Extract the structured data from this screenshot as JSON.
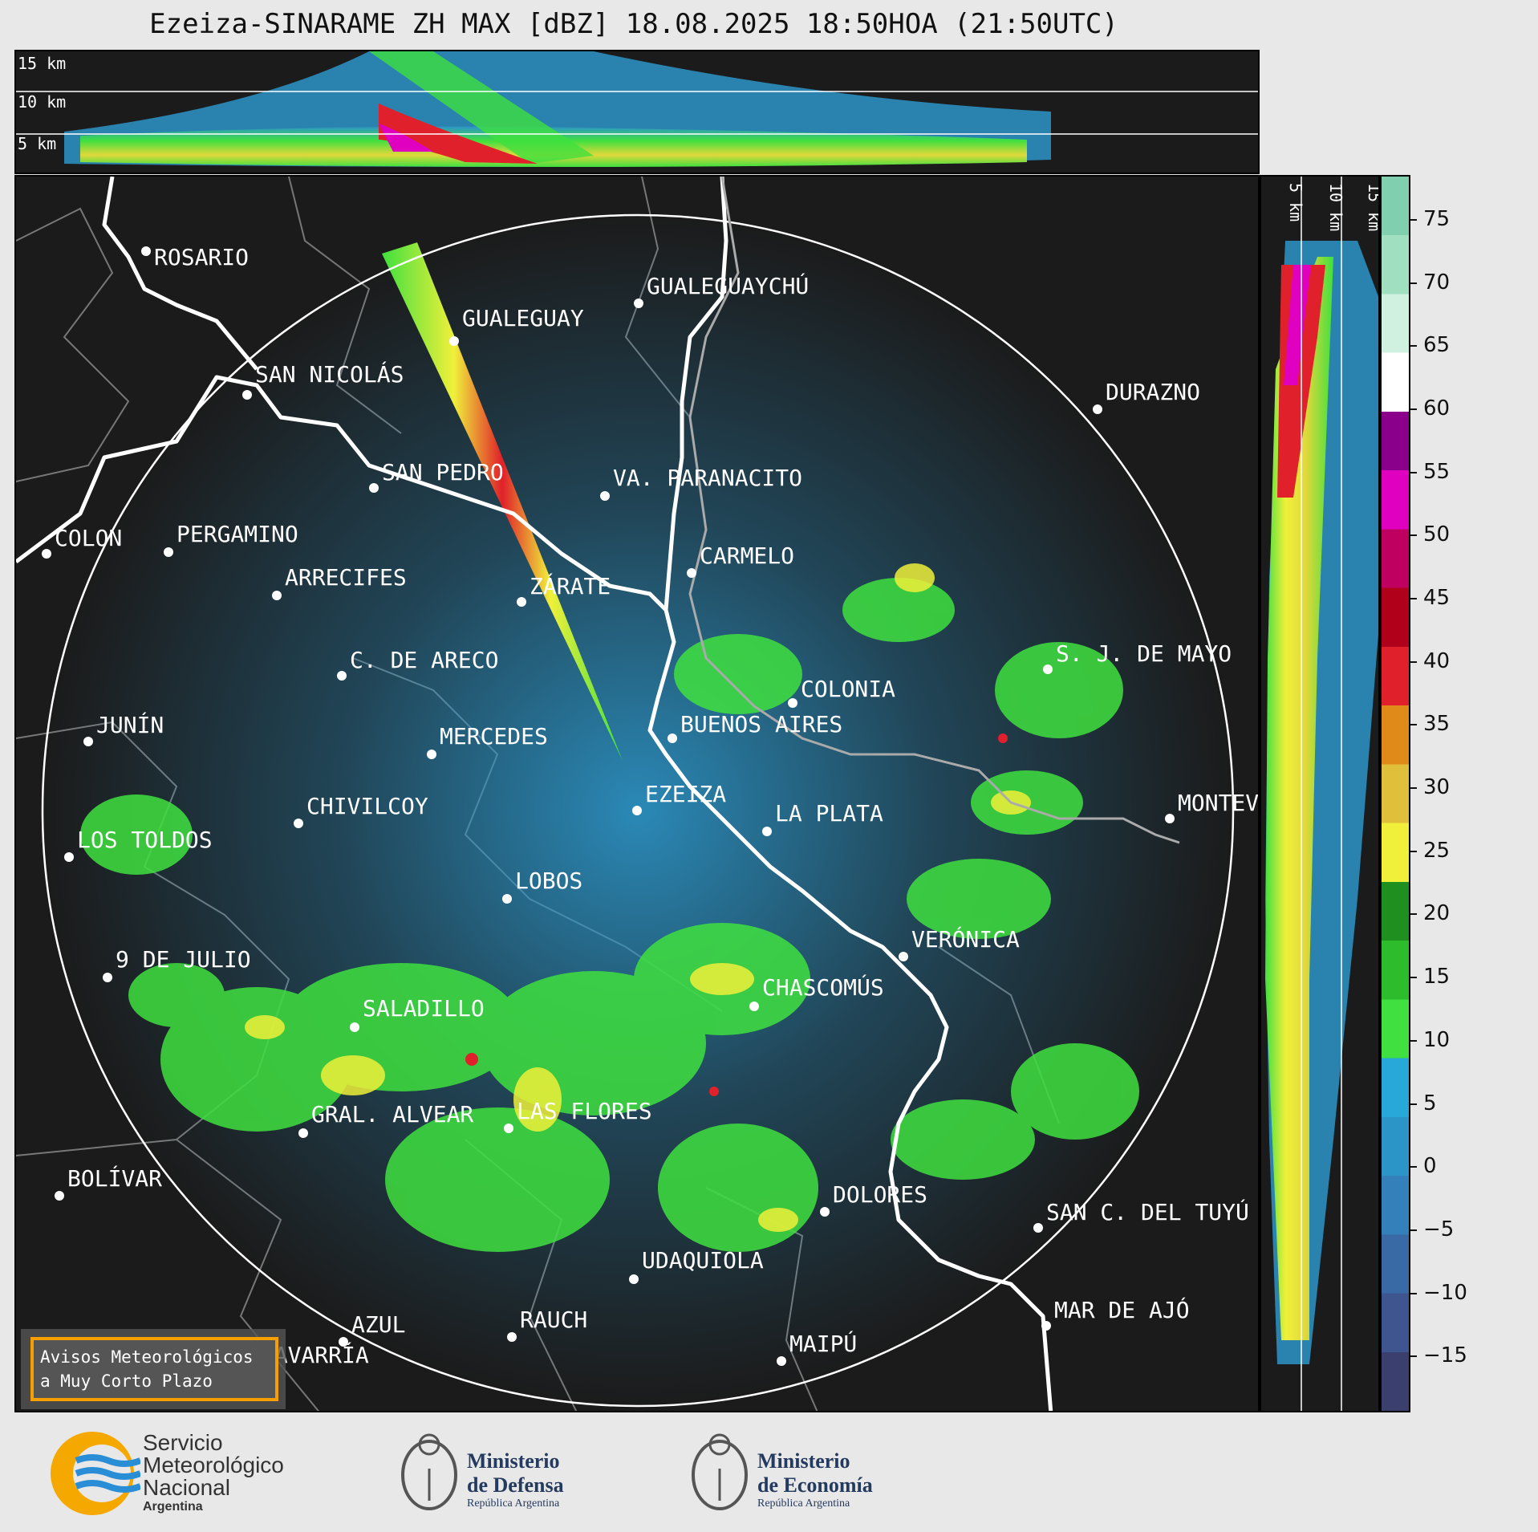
{
  "title": "Ezeiza-SINARAME ZH MAX [dBZ] 18.08.2025 18:50HOA (21:50UTC)",
  "top_panel": {
    "altitude_labels": [
      "15 km",
      "10 km",
      "5 km"
    ]
  },
  "side_panel": {
    "altitude_labels": [
      "5 km",
      "10 km",
      "15 km"
    ]
  },
  "colorbar": {
    "unit": "dBZ",
    "ticks": [
      "75",
      "70",
      "65",
      "60",
      "55",
      "50",
      "45",
      "40",
      "35",
      "30",
      "25",
      "20",
      "15",
      "10",
      "5",
      "0",
      "−5",
      "−10",
      "−15"
    ],
    "colors": [
      "#3b3f6e",
      "#3f5590",
      "#3a6aa6",
      "#3480bb",
      "#2c95c8",
      "#27a8d8",
      "#3fe03f",
      "#2cbc2c",
      "#1f8f1f",
      "#f0f03a",
      "#e0c03a",
      "#e08a1a",
      "#e0202a",
      "#b0001a",
      "#c00060",
      "#e000c0",
      "#8a008a",
      "#ffffff",
      "#d0f0e0",
      "#a0e0c0",
      "#80d0b0"
    ],
    "color_palette": {
      "low": "#3b3f6e",
      "mid_blue": "#2c95c8",
      "green": "#3fe03f",
      "yellow": "#f0f03a",
      "red": "#e0202a",
      "magenta": "#e000c0",
      "high": "#80d0b0"
    }
  },
  "map": {
    "cities": [
      {
        "name": "ROSARIO"
      },
      {
        "name": "GUALEGUAYCHÚ"
      },
      {
        "name": "GUALEGUAY"
      },
      {
        "name": "SAN NICOLÁS"
      },
      {
        "name": "DURAZNO"
      },
      {
        "name": "SAN PEDRO"
      },
      {
        "name": "VA. PARANACITO"
      },
      {
        "name": "COLON"
      },
      {
        "name": "PERGAMINO"
      },
      {
        "name": "CARMELO"
      },
      {
        "name": "ARRECIFES"
      },
      {
        "name": "ZÁRATE"
      },
      {
        "name": "S. J. DE MAYO"
      },
      {
        "name": "C. DE ARECO"
      },
      {
        "name": "COLONIA"
      },
      {
        "name": "JUNÍN"
      },
      {
        "name": "MERCEDES"
      },
      {
        "name": "BUENOS AIRES"
      },
      {
        "name": "EZEIZA"
      },
      {
        "name": "MONTEV"
      },
      {
        "name": "CHIVILCOY"
      },
      {
        "name": "LA PLATA"
      },
      {
        "name": "LOS TOLDOS"
      },
      {
        "name": "LOBOS"
      },
      {
        "name": "VERÓNICA"
      },
      {
        "name": "9 DE JULIO"
      },
      {
        "name": "CHASCOMÚS"
      },
      {
        "name": "SALADILLO"
      },
      {
        "name": "GRAL. ALVEAR"
      },
      {
        "name": "LAS FLORES"
      },
      {
        "name": "BOLÍVAR"
      },
      {
        "name": "DOLORES"
      },
      {
        "name": "SAN C. DEL TUYÚ"
      },
      {
        "name": "UDAQUIOLA"
      },
      {
        "name": "MAR DE AJÓ"
      },
      {
        "name": "AZUL"
      },
      {
        "name": "RAUCH"
      },
      {
        "name": "OLAVARRÍA"
      },
      {
        "name": "MAIPÚ"
      }
    ],
    "warning_box": {
      "line1": "Avisos Meteorológicos",
      "line2": "a Muy Corto Plazo"
    }
  },
  "logos": {
    "smn": {
      "line1": "Servicio",
      "line2": "Meteorológico",
      "line3": "Nacional",
      "line4": "Argentina"
    },
    "defensa": {
      "line1": "Ministerio",
      "line2": "de Defensa",
      "line3": "República Argentina"
    },
    "economia": {
      "line1": "Ministerio",
      "line2": "de Economía",
      "line3": "República Argentina"
    }
  }
}
